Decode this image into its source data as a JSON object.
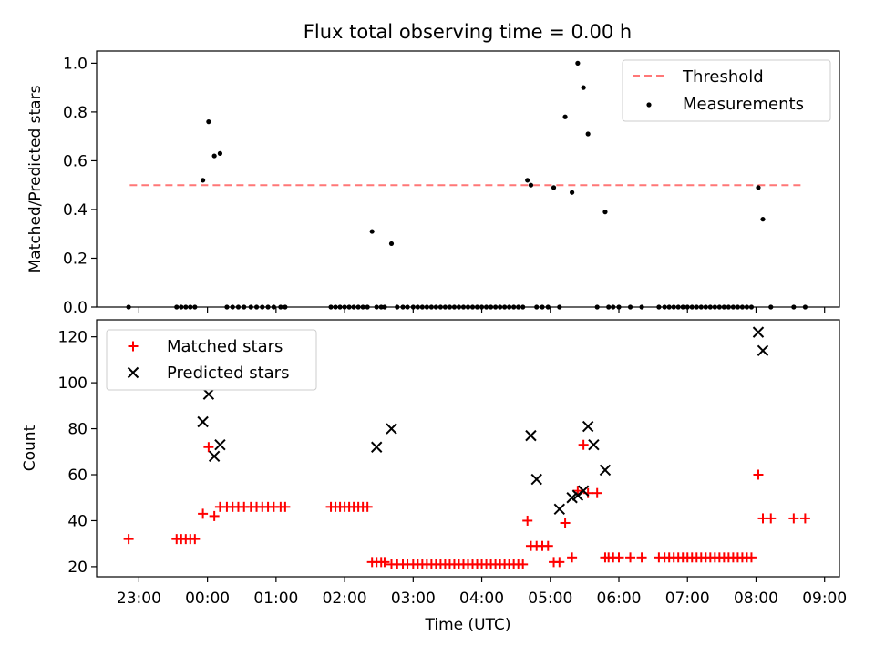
{
  "figure": {
    "title": "Flux total observing time = 0.00 h"
  },
  "chart_data": [
    {
      "type": "scatter",
      "title": "Flux total observing time = 0.00 h",
      "xlabel": "",
      "ylabel": "Matched/Predicted stars",
      "ylim": [
        0,
        1.05
      ],
      "yticks": [
        "0.0",
        "0.2",
        "0.4",
        "0.6",
        "0.8",
        "1.0"
      ],
      "legend": {
        "placement": "upper right",
        "entries": [
          "Threshold",
          "Measurements"
        ]
      },
      "threshold": {
        "name": "Threshold",
        "value": 0.5,
        "x_start": "22:52",
        "x_end": "08:41",
        "color": "#ff7777",
        "style": "dashed"
      },
      "series": [
        {
          "name": "Measurements",
          "color": "#000000",
          "marker": "dot",
          "x": [
            "22:51",
            "23:33",
            "23:37",
            "23:41",
            "23:45",
            "23:49",
            "23:56",
            "00:01",
            "00:06",
            "00:11",
            "00:17",
            "00:22",
            "00:27",
            "00:32",
            "00:38",
            "00:43",
            "00:48",
            "00:53",
            "00:58",
            "01:04",
            "01:08",
            "01:48",
            "01:52",
            "01:56",
            "02:00",
            "02:04",
            "02:08",
            "02:12",
            "02:16",
            "02:20",
            "02:24",
            "02:28",
            "02:32",
            "02:35",
            "02:41",
            "02:46",
            "02:51",
            "02:55",
            "03:00",
            "03:04",
            "03:08",
            "03:12",
            "03:16",
            "03:20",
            "03:24",
            "03:28",
            "03:32",
            "03:36",
            "03:40",
            "03:44",
            "03:48",
            "03:52",
            "03:56",
            "04:00",
            "04:04",
            "04:08",
            "04:12",
            "04:16",
            "04:20",
            "04:24",
            "04:28",
            "04:32",
            "04:36",
            "04:40",
            "04:43",
            "04:48",
            "04:53",
            "04:58",
            "05:03",
            "05:08",
            "05:13",
            "05:19",
            "05:24",
            "05:29",
            "05:33",
            "05:41",
            "05:48",
            "05:51",
            "05:55",
            "06:00",
            "06:10",
            "06:20",
            "06:35",
            "06:40",
            "06:44",
            "06:48",
            "06:52",
            "06:56",
            "07:00",
            "07:04",
            "07:08",
            "07:12",
            "07:16",
            "07:20",
            "07:24",
            "07:28",
            "07:32",
            "07:36",
            "07:40",
            "07:44",
            "07:48",
            "07:52",
            "07:56",
            "08:02",
            "08:06",
            "08:13",
            "08:33",
            "08:43"
          ],
          "y": [
            0,
            0,
            0,
            0,
            0,
            0,
            0.52,
            0.76,
            0.62,
            0.63,
            0,
            0,
            0,
            0,
            0,
            0,
            0,
            0,
            0,
            0,
            0,
            0,
            0,
            0,
            0,
            0,
            0,
            0,
            0,
            0,
            0.31,
            0,
            0,
            0,
            0.26,
            0,
            0,
            0,
            0,
            0,
            0,
            0,
            0,
            0,
            0,
            0,
            0,
            0,
            0,
            0,
            0,
            0,
            0,
            0,
            0,
            0,
            0,
            0,
            0,
            0,
            0,
            0,
            0,
            0.52,
            0.5,
            0,
            0,
            0,
            0.49,
            0,
            0.78,
            0.47,
            1.0,
            0.9,
            0.71,
            0,
            0.39,
            0,
            0,
            0,
            0,
            0,
            0,
            0,
            0,
            0,
            0,
            0,
            0,
            0,
            0,
            0,
            0,
            0,
            0,
            0,
            0,
            0,
            0,
            0,
            0,
            0,
            0,
            0.49,
            0.36,
            0,
            0,
            0
          ]
        }
      ]
    },
    {
      "type": "scatter",
      "title": "",
      "xlabel": "Time (UTC)",
      "ylabel": "Count",
      "ylim": [
        15.6,
        127.4
      ],
      "yticks": [
        "20",
        "40",
        "60",
        "80",
        "100",
        "120"
      ],
      "xticks": [
        "23:00",
        "00:00",
        "01:00",
        "02:00",
        "03:00",
        "04:00",
        "05:00",
        "06:00",
        "07:00",
        "08:00",
        "09:00"
      ],
      "xlim": [
        "22:23",
        "09:13"
      ],
      "legend": {
        "placement": "upper left",
        "entries": [
          "Matched stars",
          "Predicted stars"
        ]
      },
      "series": [
        {
          "name": "Matched stars",
          "color": "#ff0000",
          "marker": "plus",
          "x": [
            "22:51",
            "23:33",
            "23:37",
            "23:41",
            "23:45",
            "23:49",
            "23:56",
            "00:01",
            "00:06",
            "00:11",
            "00:17",
            "00:22",
            "00:27",
            "00:32",
            "00:38",
            "00:43",
            "00:48",
            "00:53",
            "00:58",
            "01:04",
            "01:08",
            "01:48",
            "01:52",
            "01:56",
            "02:00",
            "02:04",
            "02:08",
            "02:12",
            "02:16",
            "02:20",
            "02:24",
            "02:28",
            "02:32",
            "02:35",
            "02:41",
            "02:46",
            "02:51",
            "02:55",
            "03:00",
            "03:04",
            "03:08",
            "03:12",
            "03:16",
            "03:20",
            "03:24",
            "03:28",
            "03:32",
            "03:36",
            "03:40",
            "03:44",
            "03:48",
            "03:52",
            "03:56",
            "04:00",
            "04:04",
            "04:08",
            "04:12",
            "04:16",
            "04:20",
            "04:24",
            "04:28",
            "04:32",
            "04:36",
            "04:40",
            "04:43",
            "04:48",
            "04:53",
            "04:58",
            "05:03",
            "05:08",
            "05:13",
            "05:19",
            "05:24",
            "05:29",
            "05:33",
            "05:41",
            "05:48",
            "05:51",
            "05:55",
            "06:00",
            "06:10",
            "06:20",
            "06:35",
            "06:40",
            "06:44",
            "06:48",
            "06:52",
            "06:56",
            "07:00",
            "07:04",
            "07:08",
            "07:12",
            "07:16",
            "07:20",
            "07:24",
            "07:28",
            "07:32",
            "07:36",
            "07:40",
            "07:44",
            "07:48",
            "07:52",
            "07:56",
            "08:02",
            "08:06",
            "08:13",
            "08:33",
            "08:43"
          ],
          "y": [
            32,
            32,
            32,
            32,
            32,
            32,
            43,
            72,
            42,
            46,
            46,
            46,
            46,
            46,
            46,
            46,
            46,
            46,
            46,
            46,
            46,
            46,
            46,
            46,
            46,
            46,
            46,
            46,
            46,
            46,
            22,
            22,
            22,
            22,
            21,
            21,
            21,
            21,
            21,
            21,
            21,
            21,
            21,
            21,
            21,
            21,
            21,
            21,
            21,
            21,
            21,
            21,
            21,
            21,
            21,
            21,
            21,
            21,
            21,
            21,
            21,
            21,
            21,
            40,
            29,
            29,
            29,
            29,
            22,
            22,
            39,
            24,
            53,
            73,
            52,
            52,
            24,
            24,
            24,
            24,
            24,
            24,
            24,
            24,
            24,
            24,
            24,
            24,
            24,
            24,
            24,
            24,
            24,
            24,
            24,
            24,
            24,
            24,
            24,
            24,
            24,
            24,
            24,
            60,
            41,
            41,
            41,
            41
          ]
        },
        {
          "name": "Predicted stars",
          "color": "#000000",
          "marker": "x",
          "x": [
            "23:56",
            "00:01",
            "00:06",
            "00:11",
            "02:28",
            "02:41",
            "04:43",
            "04:48",
            "05:08",
            "05:19",
            "05:24",
            "05:29",
            "05:33",
            "05:38",
            "05:48",
            "08:02",
            "08:06"
          ],
          "y": [
            83,
            95,
            68,
            73,
            72,
            80,
            77,
            58,
            45,
            50,
            51,
            53,
            81,
            73,
            62,
            122,
            114
          ]
        }
      ]
    }
  ]
}
